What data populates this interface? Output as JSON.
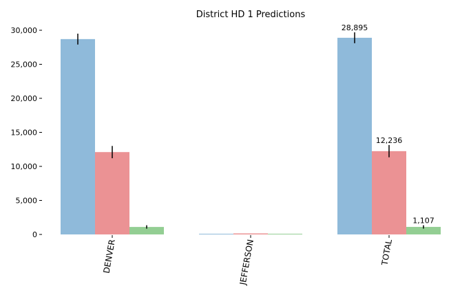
{
  "chart_data": {
    "type": "bar",
    "title": "District HD 1 Predictions",
    "xlabel": "",
    "ylabel": "",
    "categories": [
      "DENVER",
      "JEFFERSON",
      "TOTAL"
    ],
    "ylim": [
      0,
      30000
    ],
    "yticks": [
      0,
      5000,
      10000,
      15000,
      20000,
      25000,
      30000
    ],
    "ytick_labels": [
      "0",
      "5,000",
      "10,000",
      "15,000",
      "20,000",
      "25,000",
      "30,000"
    ],
    "grid": false,
    "legend": "none",
    "series": [
      {
        "color": "#8fbada",
        "values": [
          28700,
          60,
          28895
        ],
        "err": [
          800,
          0,
          800
        ]
      },
      {
        "color": "#eb9294",
        "values": [
          12100,
          150,
          12236
        ],
        "err": [
          900,
          0,
          900
        ]
      },
      {
        "color": "#93ce93",
        "values": [
          1100,
          0,
          1107
        ],
        "err": [
          250,
          0,
          250
        ]
      }
    ],
    "data_labels": [
      {
        "category": "TOTAL",
        "series": 0,
        "text": "28,895"
      },
      {
        "category": "TOTAL",
        "series": 1,
        "text": "12,236"
      },
      {
        "category": "TOTAL",
        "series": 2,
        "text": "1,107"
      }
    ]
  }
}
